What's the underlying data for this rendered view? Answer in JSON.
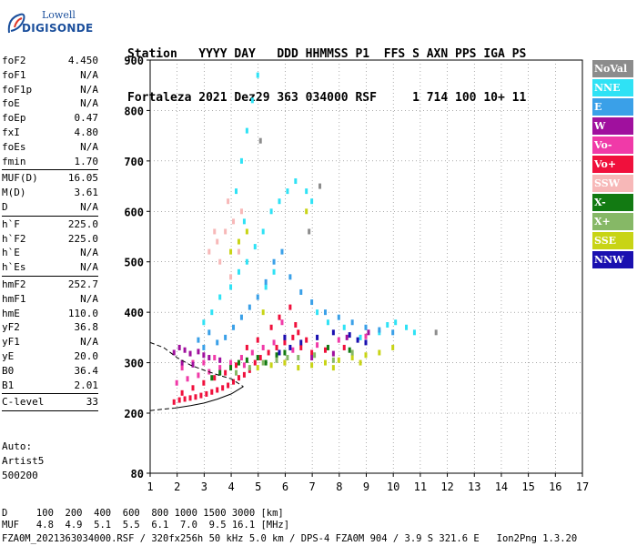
{
  "logo": {
    "top": "Lowell",
    "bottom": "DIGISONDE"
  },
  "header": {
    "line1": "Station   YYYY DAY   DDD HHMMSS P1  FFS S AXN PPS IGA PS",
    "line2": "Fortaleza 2021 Dez29 363 034000 RSF     1 714 100 10+ 11"
  },
  "scaled_params": [
    {
      "label": "foF2",
      "value": "4.450"
    },
    {
      "label": "foF1",
      "value": "N/A"
    },
    {
      "label": "foF1p",
      "value": "N/A"
    },
    {
      "label": "foE",
      "value": "N/A"
    },
    {
      "label": "foEp",
      "value": "0.47"
    },
    {
      "label": "fxI",
      "value": "4.80"
    },
    {
      "label": "foEs",
      "value": "N/A"
    },
    {
      "label": "fmin",
      "value": "1.70"
    },
    {
      "sep": true
    },
    {
      "label": "MUF(D)",
      "value": "16.05"
    },
    {
      "label": "M(D)",
      "value": "3.61"
    },
    {
      "label": "D",
      "value": "N/A"
    },
    {
      "sep": true
    },
    {
      "label": "h`F",
      "value": "225.0"
    },
    {
      "label": "h`F2",
      "value": "225.0"
    },
    {
      "label": "h`E",
      "value": "N/A"
    },
    {
      "label": "h`Es",
      "value": "N/A"
    },
    {
      "sep": true
    },
    {
      "label": "hmF2",
      "value": "252.7"
    },
    {
      "label": "hmF1",
      "value": "N/A"
    },
    {
      "label": "hmE",
      "value": "110.0"
    },
    {
      "label": "yF2",
      "value": "36.8"
    },
    {
      "label": "yF1",
      "value": "N/A"
    },
    {
      "label": "yE",
      "value": "20.0"
    },
    {
      "label": "B0",
      "value": "36.4"
    },
    {
      "label": "B1",
      "value": "2.01"
    },
    {
      "sep": true
    },
    {
      "label": "C-level",
      "value": "33"
    },
    {
      "sep": true
    }
  ],
  "auto": {
    "line1": "Auto:",
    "line2": "Artist5",
    "line3": "500200"
  },
  "footer": {
    "d_row": "D     100  200  400  600  800 1000 1500 3000 [km]",
    "muf_row": "MUF   4.8  4.9  5.1  5.5  6.1  7.0  9.5 16.1 [MHz]",
    "file_row": "FZA0M_2021363034000.RSF / 320fx256h 50 kHz 5.0 km / DPS-4 FZA0M 904 / 3.9 S 321.6 E   Ion2Png 1.3.20"
  },
  "legend": [
    {
      "label": "NoVal",
      "color": "#8c8c8c"
    },
    {
      "label": "NNE",
      "color": "#2fe2f5"
    },
    {
      "label": "E",
      "color": "#3aa0e8"
    },
    {
      "label": "W",
      "color": "#a0109e"
    },
    {
      "label": "Vo-",
      "color": "#f03aa8"
    },
    {
      "label": "Vo+",
      "color": "#f0103c"
    },
    {
      "label": "SSW",
      "color": "#f7b8b8"
    },
    {
      "label": "X-",
      "color": "#127a12"
    },
    {
      "label": "X+",
      "color": "#86b866"
    },
    {
      "label": "SSE",
      "color": "#c8d416"
    },
    {
      "label": "NNW",
      "color": "#1a10b0"
    }
  ],
  "chart_data": {
    "type": "scatter",
    "title": "",
    "xlabel": "",
    "ylabel": "",
    "xlim": [
      1,
      17
    ],
    "ylim": [
      80,
      900
    ],
    "x_ticks": [
      "1",
      "2",
      "3",
      "4",
      "5",
      "6",
      "7",
      "8",
      "9",
      "10",
      "11",
      "12",
      "13",
      "14",
      "15",
      "16",
      "17"
    ],
    "y_ticks": [
      "80",
      "200",
      "300",
      "400",
      "500",
      "600",
      "700",
      "800",
      "900"
    ],
    "y_tick_values": [
      80,
      200,
      300,
      400,
      500,
      600,
      700,
      800,
      900
    ],
    "grid": "dotted",
    "legend_placement": "right",
    "series": [
      {
        "name": "Vo+",
        "points": [
          [
            1.9,
            222
          ],
          [
            2.1,
            226
          ],
          [
            2.3,
            228
          ],
          [
            2.5,
            230
          ],
          [
            2.7,
            232
          ],
          [
            2.9,
            235
          ],
          [
            3.1,
            238
          ],
          [
            3.3,
            242
          ],
          [
            3.5,
            246
          ],
          [
            3.7,
            250
          ],
          [
            3.9,
            255
          ],
          [
            4.1,
            262
          ],
          [
            4.3,
            270
          ],
          [
            4.5,
            276
          ],
          [
            4.7,
            285
          ],
          [
            4.9,
            300
          ],
          [
            5.1,
            310
          ],
          [
            5.4,
            320
          ],
          [
            5.7,
            330
          ],
          [
            6.0,
            340
          ],
          [
            6.3,
            350
          ],
          [
            6.6,
            330
          ],
          [
            7.0,
            320
          ],
          [
            5.5,
            370
          ],
          [
            5.8,
            390
          ],
          [
            6.2,
            410
          ],
          [
            6.5,
            360
          ],
          [
            4.6,
            330
          ],
          [
            2.2,
            240
          ],
          [
            2.6,
            250
          ],
          [
            3.0,
            260
          ],
          [
            3.4,
            270
          ],
          [
            3.8,
            280
          ],
          [
            4.2,
            295
          ],
          [
            6.8,
            345
          ],
          [
            7.5,
            325
          ],
          [
            8.2,
            330
          ],
          [
            5.0,
            345
          ],
          [
            6.0,
            300
          ],
          [
            6.4,
            375
          ]
        ]
      },
      {
        "name": "Vo-",
        "points": [
          [
            2.0,
            260
          ],
          [
            2.4,
            268
          ],
          [
            2.8,
            275
          ],
          [
            3.2,
            282
          ],
          [
            3.6,
            290
          ],
          [
            4.0,
            300
          ],
          [
            4.4,
            310
          ],
          [
            4.8,
            320
          ],
          [
            5.2,
            330
          ],
          [
            5.6,
            340
          ],
          [
            6.0,
            350
          ],
          [
            2.2,
            290
          ],
          [
            2.6,
            300
          ],
          [
            3.0,
            300
          ],
          [
            3.4,
            310
          ],
          [
            4.5,
            295
          ],
          [
            5.9,
            380
          ],
          [
            6.3,
            325
          ],
          [
            7.2,
            335
          ],
          [
            8.0,
            345
          ],
          [
            9.0,
            352
          ]
        ]
      },
      {
        "name": "W",
        "points": [
          [
            1.9,
            320
          ],
          [
            2.1,
            330
          ],
          [
            2.3,
            325
          ],
          [
            2.5,
            318
          ],
          [
            2.8,
            322
          ],
          [
            3.0,
            315
          ],
          [
            3.2,
            310
          ],
          [
            2.2,
            300
          ],
          [
            2.6,
            296
          ],
          [
            3.6,
            305
          ],
          [
            7.0,
            310
          ],
          [
            7.8,
            318
          ],
          [
            8.3,
            350
          ],
          [
            9.1,
            360
          ]
        ]
      },
      {
        "name": "NNE",
        "points": [
          [
            3.0,
            380
          ],
          [
            3.3,
            400
          ],
          [
            3.6,
            430
          ],
          [
            4.0,
            450
          ],
          [
            4.3,
            480
          ],
          [
            4.6,
            500
          ],
          [
            4.9,
            530
          ],
          [
            5.2,
            560
          ],
          [
            5.5,
            600
          ],
          [
            5.8,
            620
          ],
          [
            6.1,
            640
          ],
          [
            6.4,
            660
          ],
          [
            6.8,
            640
          ],
          [
            7.0,
            620
          ],
          [
            4.4,
            700
          ],
          [
            4.6,
            760
          ],
          [
            4.8,
            820
          ],
          [
            5.0,
            870
          ],
          [
            4.2,
            640
          ],
          [
            4.5,
            580
          ],
          [
            9.8,
            375
          ],
          [
            10.1,
            380
          ],
          [
            10.5,
            370
          ],
          [
            10.8,
            360
          ],
          [
            9.5,
            360
          ],
          [
            8.8,
            350
          ],
          [
            8.2,
            370
          ],
          [
            7.6,
            380
          ],
          [
            7.2,
            400
          ],
          [
            5.3,
            450
          ],
          [
            5.6,
            480
          ]
        ]
      },
      {
        "name": "E",
        "points": [
          [
            3.8,
            350
          ],
          [
            4.1,
            370
          ],
          [
            4.4,
            390
          ],
          [
            4.7,
            410
          ],
          [
            5.0,
            430
          ],
          [
            5.3,
            460
          ],
          [
            5.6,
            500
          ],
          [
            5.9,
            520
          ],
          [
            6.2,
            470
          ],
          [
            6.6,
            440
          ],
          [
            7.0,
            420
          ],
          [
            7.5,
            400
          ],
          [
            8.0,
            390
          ],
          [
            8.5,
            380
          ],
          [
            9.0,
            370
          ],
          [
            9.5,
            365
          ],
          [
            10.0,
            360
          ],
          [
            3.2,
            360
          ],
          [
            3.5,
            340
          ],
          [
            3.0,
            330
          ],
          [
            2.8,
            345
          ]
        ]
      },
      {
        "name": "SSE",
        "points": [
          [
            5.0,
            290
          ],
          [
            5.5,
            295
          ],
          [
            6.0,
            300
          ],
          [
            6.5,
            290
          ],
          [
            7.0,
            295
          ],
          [
            7.5,
            300
          ],
          [
            8.0,
            305
          ],
          [
            8.5,
            310
          ],
          [
            9.0,
            315
          ],
          [
            9.5,
            320
          ],
          [
            10.0,
            330
          ],
          [
            7.8,
            290
          ],
          [
            8.8,
            300
          ],
          [
            4.0,
            520
          ],
          [
            4.3,
            540
          ],
          [
            4.6,
            560
          ],
          [
            6.8,
            600
          ],
          [
            5.2,
            400
          ]
        ]
      },
      {
        "name": "SSW",
        "points": [
          [
            3.2,
            520
          ],
          [
            3.5,
            540
          ],
          [
            3.8,
            560
          ],
          [
            4.1,
            580
          ],
          [
            4.4,
            600
          ],
          [
            3.6,
            500
          ],
          [
            4.0,
            470
          ],
          [
            3.4,
            560
          ],
          [
            3.9,
            620
          ],
          [
            4.3,
            520
          ]
        ]
      },
      {
        "name": "X-",
        "points": [
          [
            4.0,
            290
          ],
          [
            4.3,
            300
          ],
          [
            4.6,
            305
          ],
          [
            5.0,
            310
          ],
          [
            5.3,
            300
          ],
          [
            5.7,
            315
          ],
          [
            6.0,
            320
          ],
          [
            3.6,
            280
          ],
          [
            3.3,
            270
          ],
          [
            7.6,
            330
          ],
          [
            8.4,
            325
          ]
        ]
      },
      {
        "name": "X+",
        "points": [
          [
            4.2,
            280
          ],
          [
            4.7,
            290
          ],
          [
            5.2,
            300
          ],
          [
            5.7,
            305
          ],
          [
            6.1,
            310
          ],
          [
            6.5,
            310
          ],
          [
            7.1,
            315
          ],
          [
            7.8,
            305
          ],
          [
            8.5,
            320
          ]
        ]
      },
      {
        "name": "NNW",
        "points": [
          [
            5.8,
            320
          ],
          [
            6.2,
            330
          ],
          [
            6.6,
            340
          ],
          [
            7.2,
            350
          ],
          [
            7.8,
            360
          ],
          [
            8.4,
            355
          ],
          [
            9.0,
            340
          ],
          [
            6.0,
            350
          ],
          [
            8.7,
            345
          ]
        ]
      },
      {
        "name": "NoVal",
        "points": [
          [
            11.6,
            360
          ],
          [
            6.9,
            560
          ],
          [
            7.3,
            650
          ],
          [
            5.1,
            740
          ]
        ]
      }
    ],
    "profile_solid": [
      [
        1.9,
        210
      ],
      [
        2.5,
        215
      ],
      [
        3.0,
        220
      ],
      [
        3.5,
        228
      ],
      [
        4.0,
        238
      ],
      [
        4.45,
        252.7
      ]
    ],
    "profile_dashed": [
      [
        1.0,
        340
      ],
      [
        1.5,
        330
      ],
      [
        2.0,
        310
      ],
      [
        2.5,
        295
      ],
      [
        3.0,
        285
      ],
      [
        3.5,
        276
      ],
      [
        4.0,
        268
      ],
      [
        4.45,
        252.7
      ]
    ],
    "profile_dashed_low": [
      [
        1.0,
        205
      ],
      [
        1.5,
        208
      ],
      [
        1.9,
        210
      ]
    ]
  }
}
